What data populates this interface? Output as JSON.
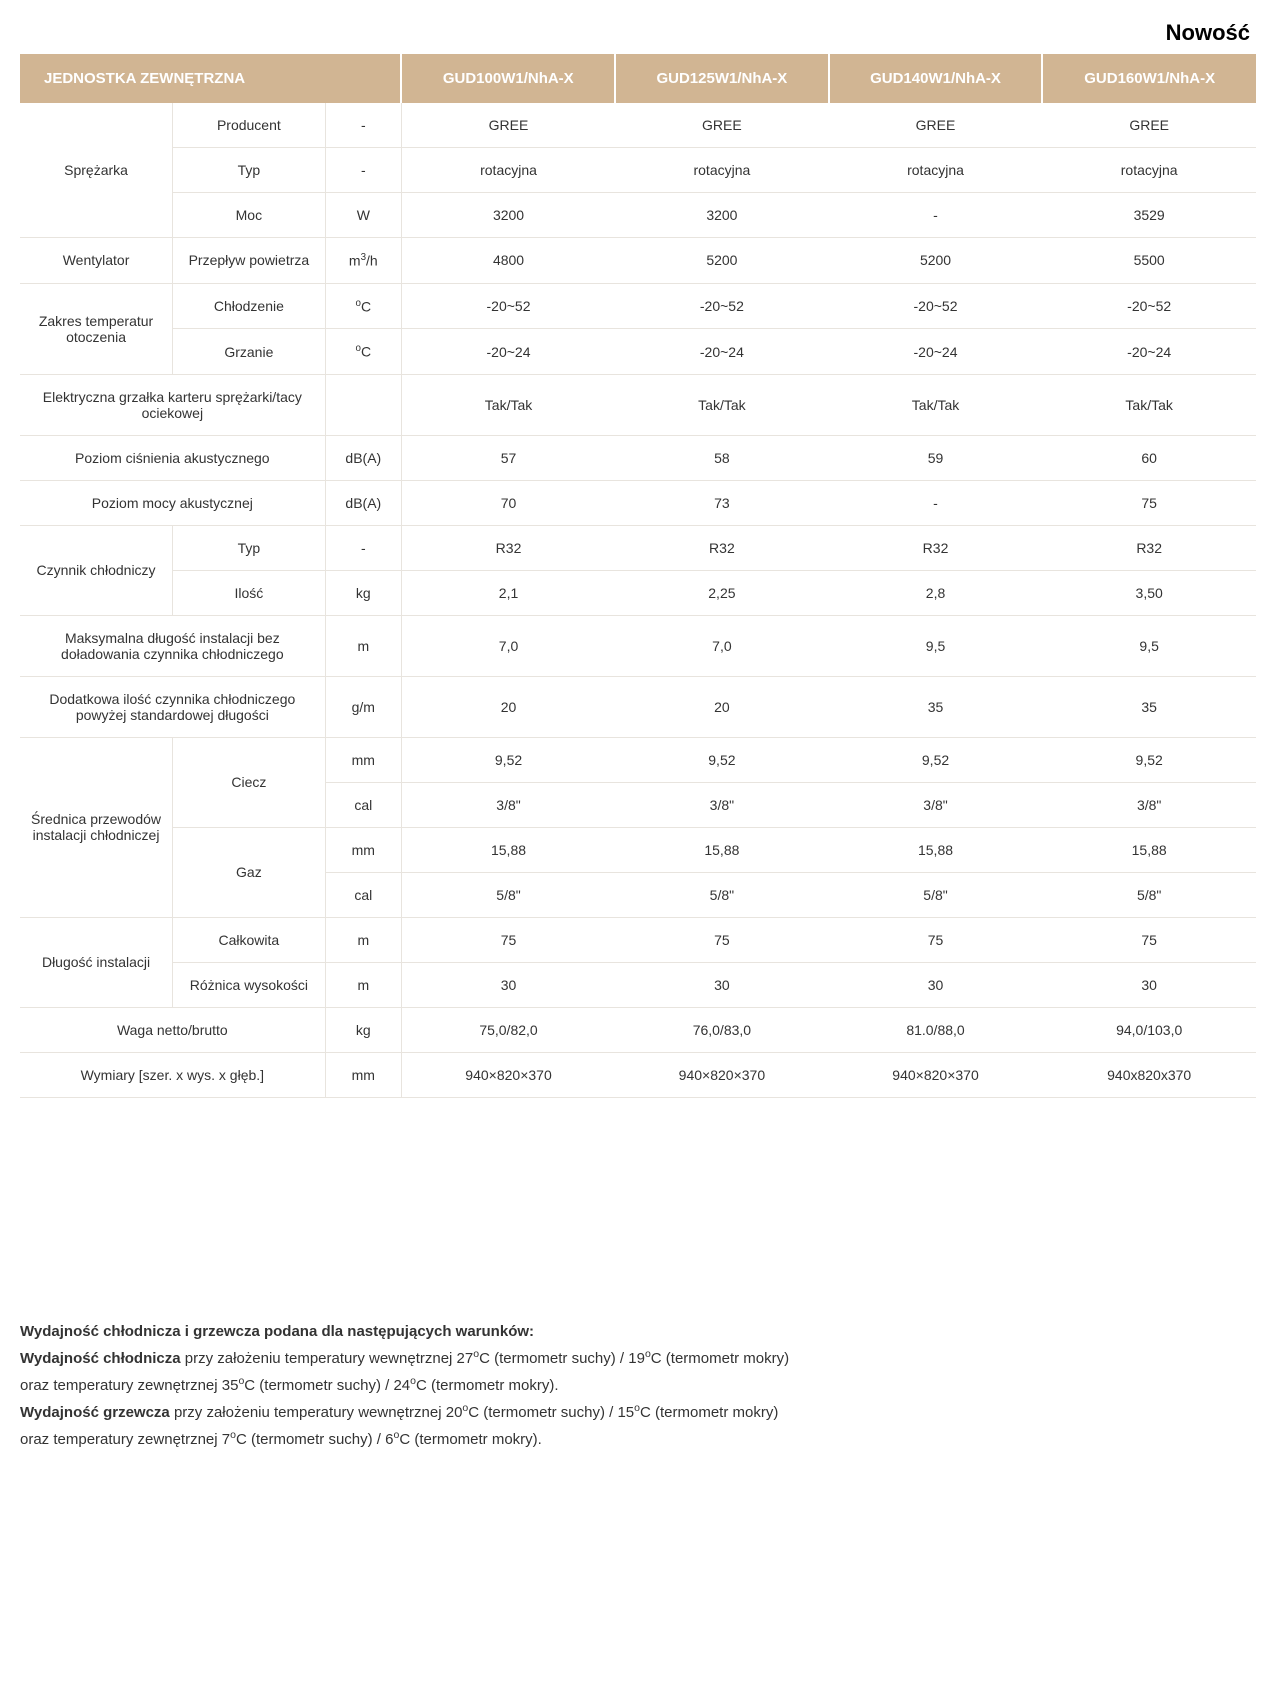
{
  "novelty_label": "Nowość",
  "header": {
    "title": "JEDNOSTKA ZEWNĘTRZNA",
    "models": [
      "GUD100W1/NhA-X",
      "GUD125W1/NhA-X",
      "GUD140W1/NhA-X",
      "GUD160W1/NhA-X"
    ]
  },
  "colors": {
    "header_bg": "#d1b593",
    "header_fg": "#ffffff",
    "border": "#e8e4de",
    "text": "#333333",
    "page_bg": "#ffffff"
  },
  "rows": [
    {
      "group": "Sprężarka",
      "group_span": 3,
      "sub": "Producent",
      "unit": "-",
      "vals": [
        "GREE",
        "GREE",
        "GREE",
        "GREE"
      ]
    },
    {
      "sub": "Typ",
      "unit": "-",
      "vals": [
        "rotacyjna",
        "rotacyjna",
        "rotacyjna",
        "rotacyjna"
      ]
    },
    {
      "sub": "Moc",
      "unit": "W",
      "vals": [
        "3200",
        "3200",
        "-",
        "3529"
      ]
    },
    {
      "group": "Wentylator",
      "group_span": 1,
      "sub": "Przepływ powietrza",
      "unit_html": "m<sup>3</sup>/h",
      "vals": [
        "4800",
        "5200",
        "5200",
        "5500"
      ]
    },
    {
      "group": "Zakres temperatur otoczenia",
      "group_span": 2,
      "sub": "Chłodzenie",
      "unit_html": "<sup>o</sup>C",
      "vals": [
        "-20~52",
        "-20~52",
        "-20~52",
        "-20~52"
      ]
    },
    {
      "sub": "Grzanie",
      "unit_html": "<sup>o</sup>C",
      "vals": [
        "-20~24",
        "-20~24",
        "-20~24",
        "-20~24"
      ]
    },
    {
      "full": "Elektryczna grzałka karteru sprężarki/tacy ociekowej",
      "unit": "",
      "vals": [
        "Tak/Tak",
        "Tak/Tak",
        "Tak/Tak",
        "Tak/Tak"
      ]
    },
    {
      "full": "Poziom ciśnienia akustycznego",
      "unit": "dB(A)",
      "vals": [
        "57",
        "58",
        "59",
        "60"
      ]
    },
    {
      "full": "Poziom mocy akustycznej",
      "unit": "dB(A)",
      "vals": [
        "70",
        "73",
        "-",
        "75"
      ]
    },
    {
      "group": "Czynnik chłodniczy",
      "group_span": 2,
      "sub": "Typ",
      "unit": "-",
      "vals": [
        "R32",
        "R32",
        "R32",
        "R32"
      ]
    },
    {
      "sub": "Ilość",
      "unit": "kg",
      "vals": [
        "2,1",
        "2,25",
        "2,8",
        "3,50"
      ]
    },
    {
      "full": "Maksymalna długość instalacji bez doładowania czynnika chłodniczego",
      "unit": "m",
      "vals": [
        "7,0",
        "7,0",
        "9,5",
        "9,5"
      ]
    },
    {
      "full": "Dodatkowa ilość czynnika chłodniczego powyżej standardowej długości",
      "unit": "g/m",
      "vals": [
        "20",
        "20",
        "35",
        "35"
      ]
    },
    {
      "group": "Średnica przewodów instalacji chłodniczej",
      "group_span": 4,
      "sub_group": "Ciecz",
      "sub_group_span": 2,
      "unit": "mm",
      "vals": [
        "9,52",
        "9,52",
        "9,52",
        "9,52"
      ]
    },
    {
      "unit": "cal",
      "vals": [
        "3/8\"",
        "3/8\"",
        "3/8\"",
        "3/8\""
      ]
    },
    {
      "sub_group": "Gaz",
      "sub_group_span": 2,
      "unit": "mm",
      "vals": [
        "15,88",
        "15,88",
        "15,88",
        "15,88"
      ]
    },
    {
      "unit": "cal",
      "vals": [
        "5/8\"",
        "5/8\"",
        "5/8\"",
        "5/8\""
      ]
    },
    {
      "group": "Długość instalacji",
      "group_span": 2,
      "sub": "Całkowita",
      "unit": "m",
      "vals": [
        "75",
        "75",
        "75",
        "75"
      ]
    },
    {
      "sub": "Różnica wysokości",
      "unit": "m",
      "vals": [
        "30",
        "30",
        "30",
        "30"
      ]
    },
    {
      "full": "Waga netto/brutto",
      "unit": "kg",
      "vals": [
        "75,0/82,0",
        "76,0/83,0",
        "81.0/88,0",
        "94,0/103,0"
      ]
    },
    {
      "full": "Wymiary [szer. x wys. x głęb.]",
      "unit": "mm",
      "vals": [
        "940×820×370",
        "940×820×370",
        "940×820×370",
        "940x820x370"
      ]
    }
  ],
  "notes": {
    "title": "Wydajność chłodnicza i grzewcza podana dla następujących warunków:",
    "lines": [
      {
        "bold": "Wydajność chłodnicza",
        "rest": " przy założeniu temperatury wewnętrznej 27°C (termometr suchy) / 19°C (termometr mokry)"
      },
      {
        "rest": "oraz temperatury zewnętrznej 35°C (termometr suchy) / 24°C (termometr mokry)."
      },
      {
        "bold": "Wydajność grzewcza",
        "rest": " przy założeniu temperatury wewnętrznej 20°C (termometr suchy) / 15°C (termometr mokry)"
      },
      {
        "rest": "oraz temperatury zewnętrznej 7°C (termometr suchy) / 6°C (termometr mokry)."
      }
    ]
  }
}
